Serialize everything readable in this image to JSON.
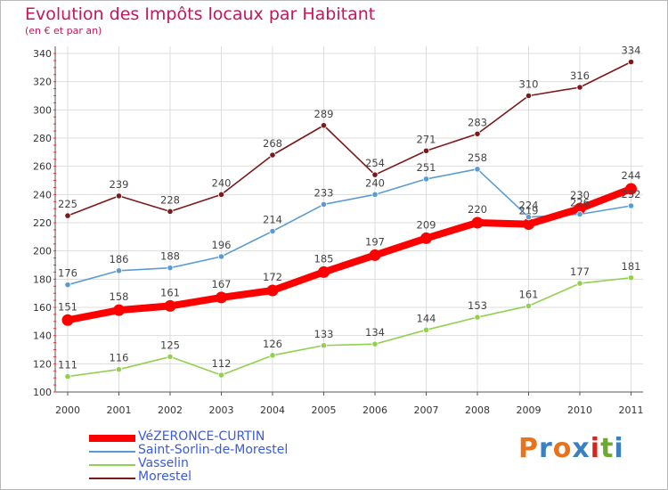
{
  "header": {
    "title": "Evolution des Impôts locaux par Habitant",
    "subtitle": "(en € et par an)"
  },
  "chart_data": {
    "type": "line",
    "title": "Evolution des Impôts locaux par Habitant",
    "subtitle": "(en € et par an)",
    "xlabel": "",
    "ylabel": "",
    "x": [
      "2000",
      "2001",
      "2002",
      "2003",
      "2004",
      "2005",
      "2006",
      "2007",
      "2008",
      "2009",
      "2010",
      "2011"
    ],
    "ylim": [
      100,
      340
    ],
    "yticks": [
      100,
      120,
      140,
      160,
      180,
      200,
      220,
      240,
      260,
      280,
      300,
      320,
      340
    ],
    "grid": true,
    "legend_position": "bottom-left",
    "series": [
      {
        "name": "VéZERONCE-CURTIN",
        "color": "#ff0000",
        "values": [
          151,
          158,
          161,
          167,
          172,
          185,
          197,
          209,
          220,
          219,
          230,
          244
        ]
      },
      {
        "name": "Saint-Sorlin-de-Morestel",
        "color": "#5b9bd5",
        "values": [
          176,
          186,
          188,
          196,
          214,
          233,
          240,
          251,
          258,
          224,
          226,
          232
        ]
      },
      {
        "name": "Vasselin",
        "color": "#92d050",
        "values": [
          111,
          116,
          125,
          112,
          126,
          133,
          134,
          144,
          153,
          161,
          177,
          181
        ]
      },
      {
        "name": "Morestel",
        "color": "#7b1a1a",
        "values": [
          225,
          239,
          228,
          240,
          268,
          289,
          254,
          271,
          283,
          310,
          316,
          334
        ]
      }
    ]
  },
  "logo": {
    "letters": [
      "P",
      "r",
      "o",
      "x",
      "i",
      "t",
      "i"
    ],
    "colors": [
      "#e8731a",
      "#3a7fc1",
      "#e8731a",
      "#3a7fc1",
      "#d6261b",
      "#6aaa2e",
      "#3a7fc1"
    ]
  }
}
